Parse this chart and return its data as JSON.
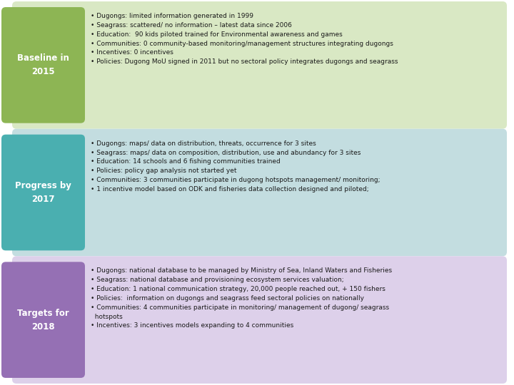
{
  "background_color": "#ffffff",
  "rows": [
    {
      "label": "Baseline in\n2015",
      "label_color": "#8db554",
      "box_color": "#d9e8c4",
      "text": "• Dugongs: limited information generated in 1999\n• Seagrass: scattered/ no information – latest data since 2006\n• Education:  90 kids piloted trained for Environmental awareness and games\n• Communities: 0 community-based monitoring/management structures integrating dugongs\n• Incentives: 0 incentives\n• Policies: Dugong MoU signed in 2011 but no sectoral policy integrates dugongs and seagrass"
    },
    {
      "label": "Progress by\n2017",
      "label_color": "#4aafb0",
      "box_color": "#c3dde0",
      "text": "• Dugongs: maps/ data on distribution, threats, occurrence for 3 sites\n• Seagrass: maps/ data on composition, distribution, use and abundancy for 3 sites\n• Education: 14 schools and 6 fishing communities trained\n• Policies: policy gap analysis not started yet\n• Communities: 3 communities participate in dugong hotspots management/ monitoring;\n• 1 incentive model based on ODK and fisheries data collection designed and piloted;"
    },
    {
      "label": "Targets for\n2018",
      "label_color": "#9570b4",
      "box_color": "#ddd0ea",
      "text": "• Dugongs: national database to be managed by Ministry of Sea, Inland Waters and Fisheries\n• Seagrass: national database and provisioning ecosystem services valuation;\n• Education: 1 national communication strategy, 20,000 people reached out, + 150 fishers\n• Policies:  information on dugongs and seagrass feed sectoral policies on nationally\n• Communities: 4 communities participate in monitoring/ management of dugong/ seagrass\n  hotspots\n• Incentives: 3 incentives models expanding to 4 communities"
    }
  ],
  "font_size_label": 8.5,
  "font_size_text": 6.5
}
